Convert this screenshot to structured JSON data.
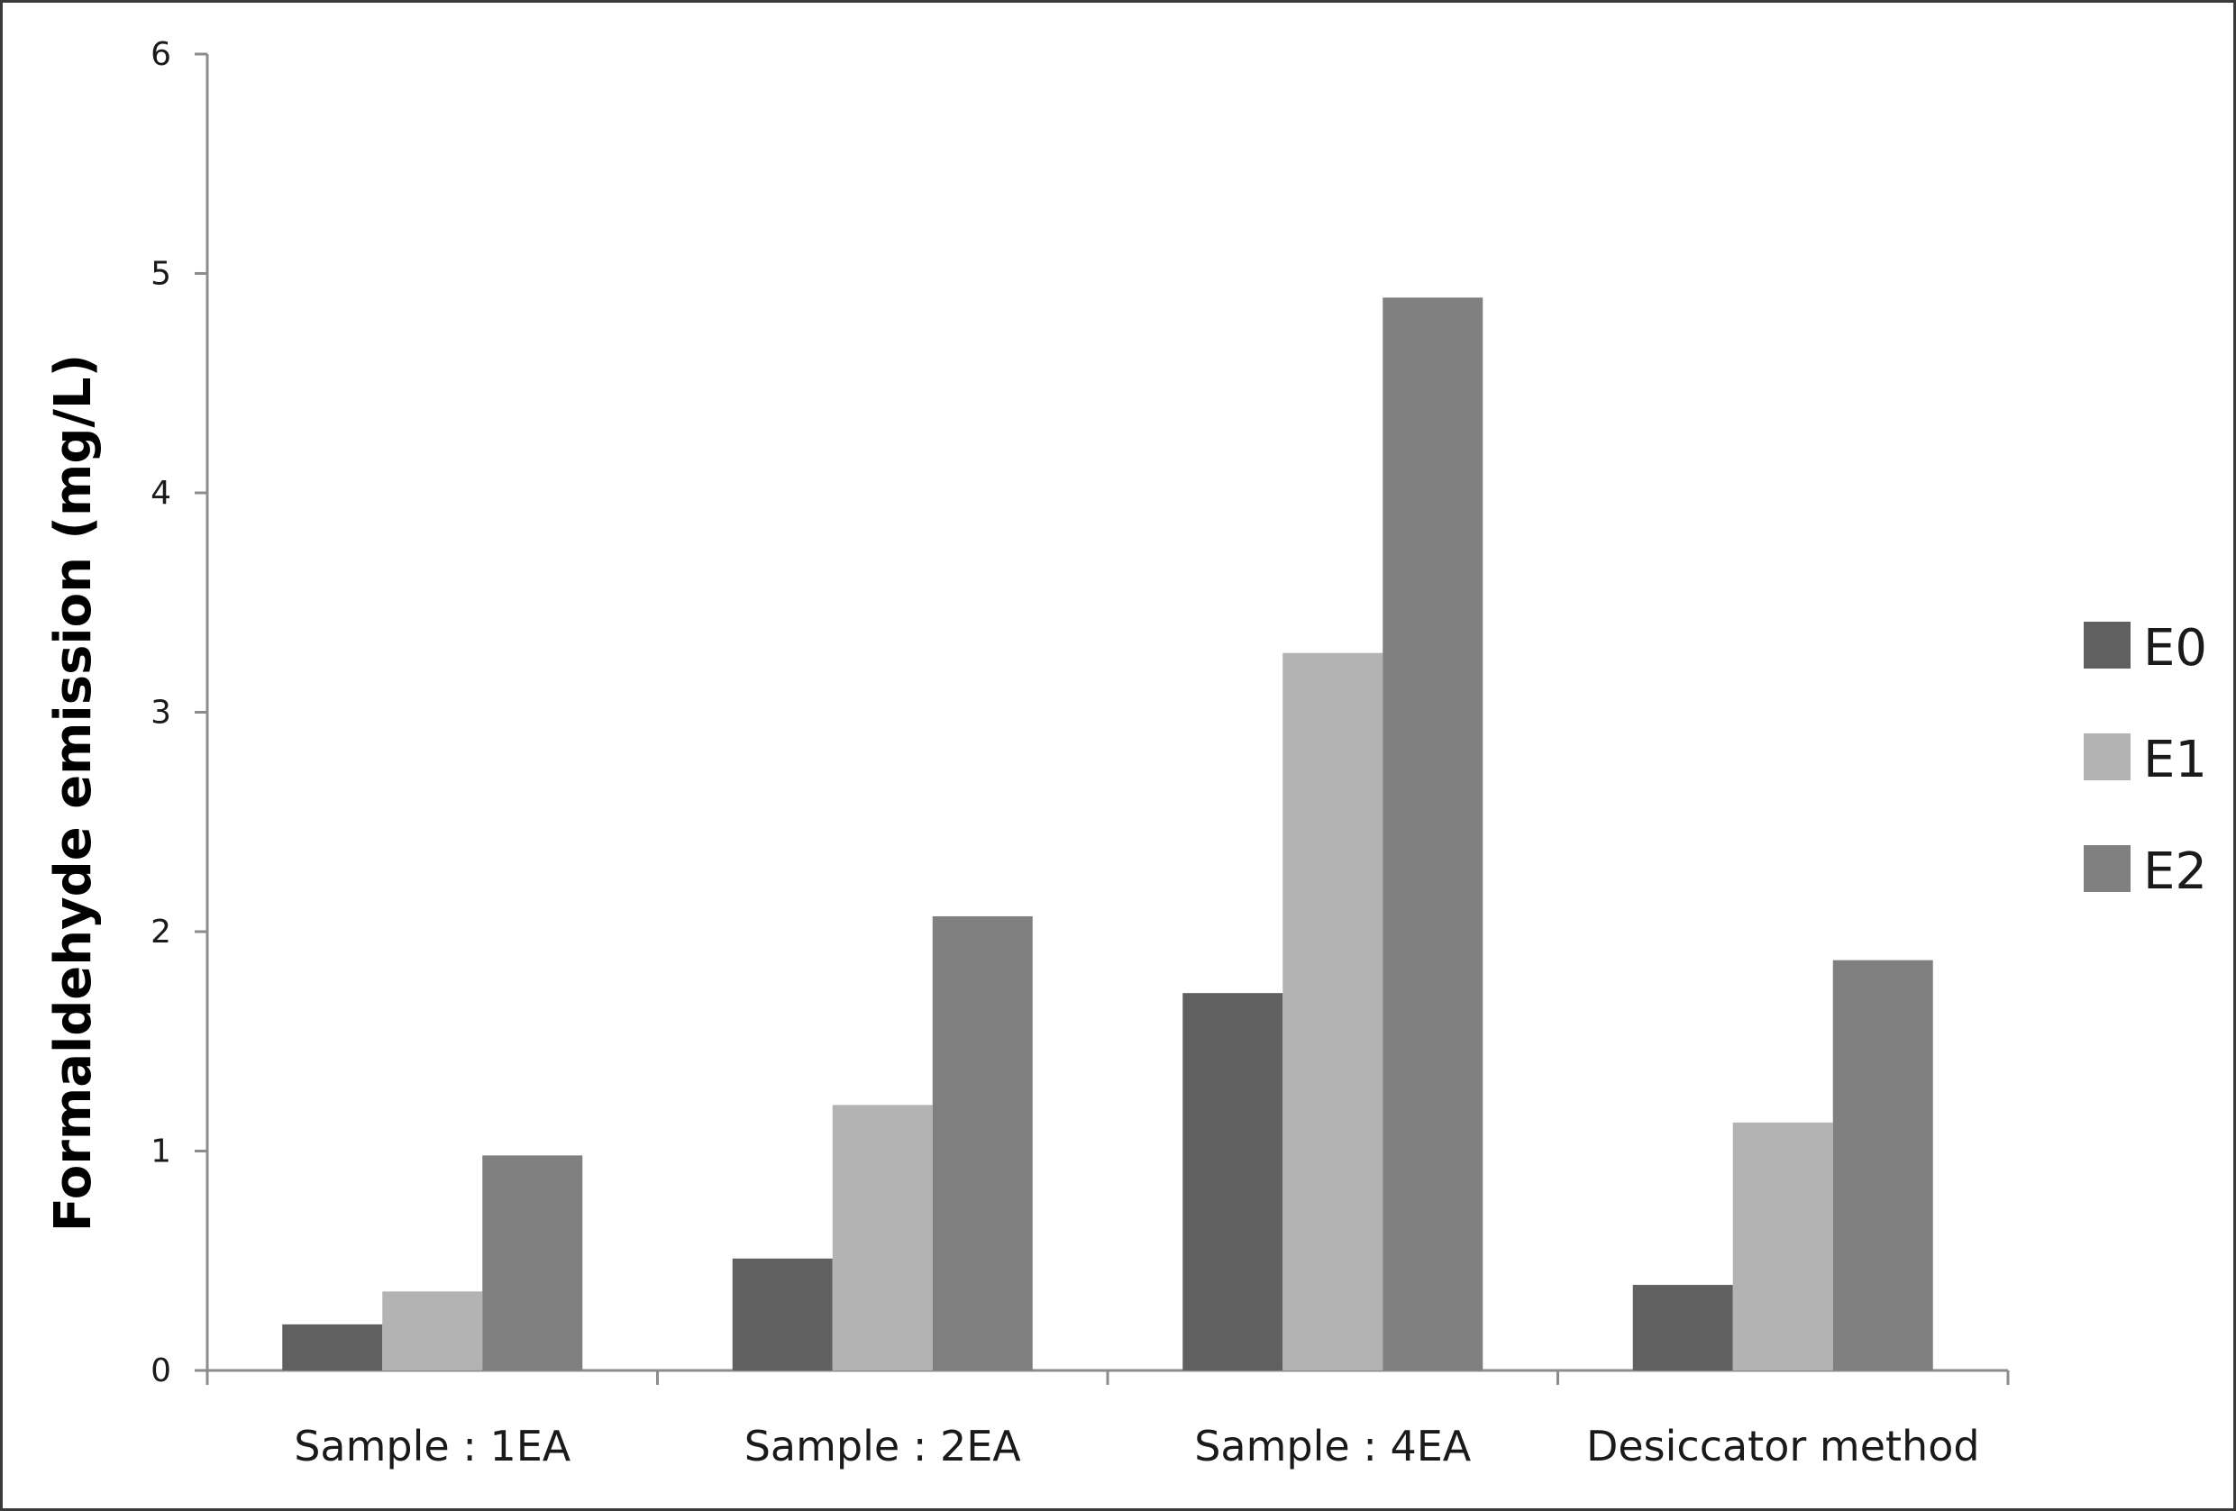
{
  "chart_data": {
    "type": "bar",
    "title": "",
    "xlabel": "",
    "ylabel": "Formaldehyde emission (mg/L)",
    "ylim": [
      0,
      6
    ],
    "yticks": [
      0,
      1,
      2,
      3,
      4,
      5,
      6
    ],
    "grid": false,
    "legend_position": "right",
    "categories": [
      "Sample : 1EA",
      "Sample : 2EA",
      "Sample : 4EA",
      "Desiccator method"
    ],
    "series": [
      {
        "name": "E0",
        "color": "#606060",
        "values": [
          0.21,
          0.51,
          1.72,
          0.39
        ]
      },
      {
        "name": "E1",
        "color": "#b3b3b3",
        "values": [
          0.36,
          1.21,
          3.27,
          1.13
        ]
      },
      {
        "name": "E2",
        "color": "#808080",
        "values": [
          0.98,
          2.07,
          4.89,
          1.87
        ]
      }
    ]
  }
}
